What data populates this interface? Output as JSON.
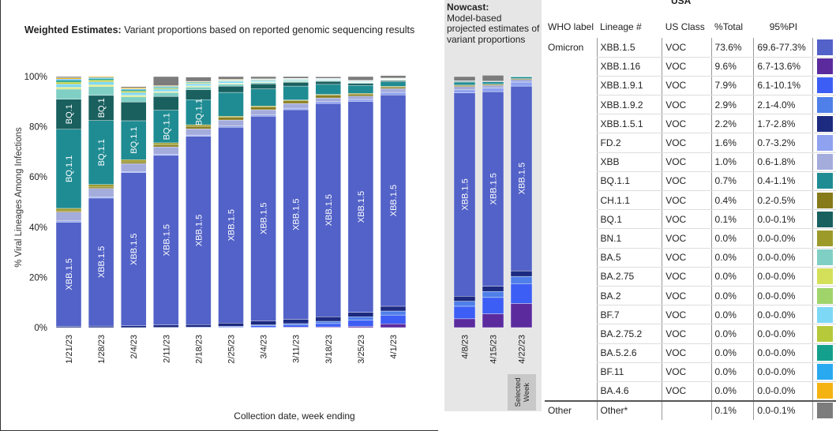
{
  "chart_title_bold": "Weighted Estimates:",
  "chart_title_rest": " Variant proportions based on reported genomic sequencing results",
  "nowcast_title_bold": "Nowcast:",
  "nowcast_title_rest": "Model-based projected estimates of variant proportions",
  "selected_week_label": "Selected Week",
  "usa_title": "USA",
  "colors": {
    "XBB.1.5": "#5262c8",
    "XBB.1.16": "#5b2b9e",
    "XBB.1.9.1": "#3d5ef5",
    "XBB.1.9.2": "#4f7fe8",
    "XBB.1.5.1": "#1c2a80",
    "FD.2": "#8ea2f0",
    "XBB": "#a4acdc",
    "BQ.1.1": "#1f8c93",
    "CH.1.1": "#877a1a",
    "BQ.1": "#19605f",
    "BN.1": "#9c9b2a",
    "BA.5": "#80cfc4",
    "BA.2.75": "#d5e05a",
    "BA.2": "#9fd46a",
    "BF.7": "#7dd8f5",
    "BA.2.75.2": "#b5c93a",
    "BA.5.2.6": "#15a08e",
    "BF.11": "#29a9f0",
    "BA.4.6": "#f5b312",
    "Other": "#7c7c7c"
  },
  "chart_data": {
    "type": "bar",
    "stacked": true,
    "ylabel": "% Viral Lineages Among Infections",
    "xlabel": "Collection date, week ending",
    "ylim": [
      0,
      100
    ],
    "yticks": [
      "0%",
      "20%",
      "40%",
      "60%",
      "80%",
      "100%"
    ],
    "ytick_values": [
      0,
      20,
      40,
      60,
      80,
      100
    ],
    "stack_order": [
      "XBB.1.16",
      "XBB.1.9.1",
      "XBB.1.9.2",
      "XBB.1.5.1",
      "XBB.1.5",
      "FD.2",
      "XBB",
      "CH.1.1",
      "BN.1",
      "BQ.1.1",
      "BQ.1",
      "BA.5",
      "BA.2.75",
      "BA.2",
      "BF.7",
      "BA.2.75.2",
      "BA.5.2.6",
      "BF.11",
      "BA.4.6",
      "Other"
    ],
    "weighted": {
      "categories": [
        "1/21/23",
        "1/28/23",
        "2/4/23",
        "2/11/23",
        "2/18/23",
        "2/25/23",
        "3/4/23",
        "3/11/23",
        "3/18/23",
        "3/25/23",
        "4/1/23"
      ],
      "series": [
        {
          "name": "XBB.1.16",
          "values": [
            0,
            0,
            0,
            0,
            0,
            0,
            0.1,
            0.2,
            0.3,
            0.5,
            1.5
          ]
        },
        {
          "name": "XBB.1.9.1",
          "values": [
            0,
            0,
            0,
            0.1,
            0.2,
            0.3,
            0.6,
            0.8,
            1.3,
            2.5,
            3.5
          ]
        },
        {
          "name": "XBB.1.9.2",
          "values": [
            0,
            0,
            0,
            0,
            0,
            0.2,
            0.4,
            0.6,
            0.9,
            1.3,
            1.6
          ]
        },
        {
          "name": "XBB.1.5.1",
          "values": [
            0.5,
            0.6,
            0.7,
            1.0,
            1.0,
            1.3,
            1.6,
            1.7,
            1.8,
            1.8,
            1.9
          ]
        },
        {
          "name": "XBB.1.5",
          "values": [
            41.5,
            51.0,
            61.0,
            67.5,
            75.0,
            78.0,
            81.5,
            83.5,
            85.0,
            84.0,
            84.2
          ]
        },
        {
          "name": "FD.2",
          "values": [
            0.5,
            0.5,
            0.5,
            0.5,
            0.5,
            0.5,
            0.5,
            0.6,
            0.7,
            0.8,
            1.0
          ]
        },
        {
          "name": "XBB",
          "values": [
            3.5,
            3.3,
            3.1,
            2.9,
            2.5,
            2.4,
            2.1,
            1.9,
            1.5,
            1.3,
            1.5
          ]
        },
        {
          "name": "CH.1.1",
          "values": [
            0.5,
            0.6,
            0.7,
            0.8,
            0.9,
            1.0,
            1.0,
            1.0,
            1.0,
            0.8,
            0.6
          ]
        },
        {
          "name": "BN.1",
          "values": [
            1.0,
            1.0,
            0.9,
            0.8,
            0.7,
            0.5,
            0.5,
            0.4,
            0.4,
            0.3,
            0.3
          ]
        },
        {
          "name": "BQ.1.1",
          "values": [
            31.5,
            25.5,
            15.5,
            13.0,
            10.0,
            9.5,
            6.8,
            5.5,
            4.0,
            3.2,
            1.8
          ]
        },
        {
          "name": "BQ.1",
          "values": [
            12.0,
            10.0,
            7.5,
            5.5,
            4.0,
            2.5,
            2.0,
            1.5,
            1.2,
            0.8,
            0.5
          ]
        },
        {
          "name": "BA.5",
          "values": [
            4.0,
            3.5,
            2.0,
            1.5,
            1.0,
            0.8,
            0.5,
            0.4,
            0.3,
            0.3,
            0.2
          ]
        },
        {
          "name": "BA.2.75",
          "values": [
            0.5,
            0.5,
            0.4,
            0.3,
            0.3,
            0.2,
            0.2,
            0.2,
            0.1,
            0.1,
            0.1
          ]
        },
        {
          "name": "BA.2",
          "values": [
            0.3,
            0.3,
            0.3,
            0.2,
            0.2,
            0.2,
            0.1,
            0.1,
            0.1,
            0.1,
            0.1
          ]
        },
        {
          "name": "BF.7",
          "values": [
            1.2,
            1.1,
            1.0,
            0.9,
            0.8,
            0.7,
            0.5,
            0.4,
            0.3,
            0.3,
            0.2
          ]
        },
        {
          "name": "BA.2.75.2",
          "values": [
            0.8,
            0.7,
            0.6,
            0.4,
            0.3,
            0.2,
            0.2,
            0.2,
            0.1,
            0.1,
            0.1
          ]
        },
        {
          "name": "BA.5.2.6",
          "values": [
            0.7,
            0.6,
            0.5,
            0.4,
            0.3,
            0.2,
            0.2,
            0.1,
            0.1,
            0.1,
            0.1
          ]
        },
        {
          "name": "BF.11",
          "values": [
            0.5,
            0.4,
            0.4,
            0.3,
            0.2,
            0.2,
            0.2,
            0.1,
            0.1,
            0.1,
            0.1
          ]
        },
        {
          "name": "BA.4.6",
          "values": [
            0.5,
            0.4,
            0.4,
            0.3,
            0.2,
            0.2,
            0.1,
            0.1,
            0.1,
            0.1,
            0.1
          ]
        },
        {
          "name": "Other",
          "values": [
            0.5,
            0.0,
            0.5,
            3.6,
            1.7,
            1.1,
            0.9,
            0.7,
            0.6,
            1.5,
            1.0
          ]
        }
      ],
      "bar_labels": [
        [
          {
            "lineage": "XBB.1.5",
            "text": "XBB.1.5"
          },
          {
            "lineage": "BQ.1.1",
            "text": "BQ.1.1"
          },
          {
            "lineage": "BQ.1",
            "text": "BQ.1"
          }
        ],
        [
          {
            "lineage": "XBB.1.5",
            "text": "XBB.1.5"
          },
          {
            "lineage": "BQ.1.1",
            "text": "BQ.1.1"
          },
          {
            "lineage": "BQ.1",
            "text": "BQ.1"
          }
        ],
        [
          {
            "lineage": "XBB.1.5",
            "text": "XBB.1.5"
          },
          {
            "lineage": "BQ.1.1",
            "text": "BQ.1.1"
          }
        ],
        [
          {
            "lineage": "XBB.1.5",
            "text": "XBB.1.5"
          },
          {
            "lineage": "BQ.1.1",
            "text": "BQ.1.1"
          }
        ],
        [
          {
            "lineage": "XBB.1.5",
            "text": "XBB.1.5"
          },
          {
            "lineage": "BQ.1.1",
            "text": "BQ.1.1"
          }
        ],
        [
          {
            "lineage": "XBB.1.5",
            "text": "XBB.1.5"
          }
        ],
        [
          {
            "lineage": "XBB.1.5",
            "text": "XBB.1.5"
          }
        ],
        [
          {
            "lineage": "XBB.1.5",
            "text": "XBB.1.5"
          }
        ],
        [
          {
            "lineage": "XBB.1.5",
            "text": "XBB.1.5"
          }
        ],
        [
          {
            "lineage": "XBB.1.5",
            "text": "XBB.1.5"
          }
        ],
        [
          {
            "lineage": "XBB.1.5",
            "text": "XBB.1.5"
          }
        ]
      ]
    },
    "nowcast": {
      "categories": [
        "4/8/23",
        "4/15/23",
        "4/22/23"
      ],
      "selected_index": 2,
      "series": [
        {
          "name": "XBB.1.16",
          "values": [
            3.5,
            5.5,
            9.6
          ]
        },
        {
          "name": "XBB.1.9.1",
          "values": [
            5.0,
            6.5,
            7.9
          ]
        },
        {
          "name": "XBB.1.9.2",
          "values": [
            2.0,
            2.4,
            2.9
          ]
        },
        {
          "name": "XBB.1.5.1",
          "values": [
            2.0,
            2.1,
            2.2
          ]
        },
        {
          "name": "XBB.1.5",
          "values": [
            81.0,
            77.5,
            73.6
          ]
        },
        {
          "name": "FD.2",
          "values": [
            1.2,
            1.4,
            1.6
          ]
        },
        {
          "name": "XBB",
          "values": [
            1.3,
            1.1,
            1.0
          ]
        },
        {
          "name": "CH.1.1",
          "values": [
            0.5,
            0.4,
            0.4
          ]
        },
        {
          "name": "BN.1",
          "values": [
            0.1,
            0.1,
            0.0
          ]
        },
        {
          "name": "BQ.1.1",
          "values": [
            1.2,
            0.9,
            0.7
          ]
        },
        {
          "name": "BQ.1",
          "values": [
            0.3,
            0.2,
            0.1
          ]
        },
        {
          "name": "BA.5",
          "values": [
            0.1,
            0.1,
            0.0
          ]
        },
        {
          "name": "BA.2.75",
          "values": [
            0.0,
            0.0,
            0.0
          ]
        },
        {
          "name": "BA.2",
          "values": [
            0.0,
            0.0,
            0.0
          ]
        },
        {
          "name": "BF.7",
          "values": [
            0.1,
            0.0,
            0.0
          ]
        },
        {
          "name": "BA.2.75.2",
          "values": [
            0.0,
            0.0,
            0.0
          ]
        },
        {
          "name": "BA.5.2.6",
          "values": [
            0.0,
            0.0,
            0.0
          ]
        },
        {
          "name": "BF.11",
          "values": [
            0.0,
            0.0,
            0.0
          ]
        },
        {
          "name": "BA.4.6",
          "values": [
            0.0,
            0.0,
            0.0
          ]
        },
        {
          "name": "Other",
          "values": [
            1.7,
            2.3,
            0.1
          ]
        }
      ],
      "bar_labels": [
        [
          {
            "lineage": "XBB.1.5",
            "text": "XBB.1.5"
          }
        ],
        [
          {
            "lineage": "XBB.1.5",
            "text": "XBB.1.5"
          }
        ],
        [
          {
            "lineage": "XBB.1.5",
            "text": "XBB.1.5"
          }
        ]
      ]
    }
  },
  "table": {
    "headers": {
      "who": "WHO label",
      "lineage": "Lineage #",
      "us_class": "US Class",
      "pct": "%Total",
      "pi": "95%PI"
    },
    "rows": [
      {
        "who": "Omicron",
        "lineage": "XBB.1.5",
        "us_class": "VOC",
        "pct": "73.6%",
        "pi": "69.6-77.3%"
      },
      {
        "who": "",
        "lineage": "XBB.1.16",
        "us_class": "VOC",
        "pct": "9.6%",
        "pi": "6.7-13.6%"
      },
      {
        "who": "",
        "lineage": "XBB.1.9.1",
        "us_class": "VOC",
        "pct": "7.9%",
        "pi": "6.1-10.1%"
      },
      {
        "who": "",
        "lineage": "XBB.1.9.2",
        "us_class": "VOC",
        "pct": "2.9%",
        "pi": "2.1-4.0%"
      },
      {
        "who": "",
        "lineage": "XBB.1.5.1",
        "us_class": "VOC",
        "pct": "2.2%",
        "pi": "1.7-2.8%"
      },
      {
        "who": "",
        "lineage": "FD.2",
        "us_class": "VOC",
        "pct": "1.6%",
        "pi": "0.7-3.2%"
      },
      {
        "who": "",
        "lineage": "XBB",
        "us_class": "VOC",
        "pct": "1.0%",
        "pi": "0.6-1.8%"
      },
      {
        "who": "",
        "lineage": "BQ.1.1",
        "us_class": "VOC",
        "pct": "0.7%",
        "pi": "0.4-1.1%"
      },
      {
        "who": "",
        "lineage": "CH.1.1",
        "us_class": "VOC",
        "pct": "0.4%",
        "pi": "0.2-0.5%"
      },
      {
        "who": "",
        "lineage": "BQ.1",
        "us_class": "VOC",
        "pct": "0.1%",
        "pi": "0.0-0.1%"
      },
      {
        "who": "",
        "lineage": "BN.1",
        "us_class": "VOC",
        "pct": "0.0%",
        "pi": "0.0-0.0%"
      },
      {
        "who": "",
        "lineage": "BA.5",
        "us_class": "VOC",
        "pct": "0.0%",
        "pi": "0.0-0.0%"
      },
      {
        "who": "",
        "lineage": "BA.2.75",
        "us_class": "VOC",
        "pct": "0.0%",
        "pi": "0.0-0.0%"
      },
      {
        "who": "",
        "lineage": "BA.2",
        "us_class": "VOC",
        "pct": "0.0%",
        "pi": "0.0-0.0%"
      },
      {
        "who": "",
        "lineage": "BF.7",
        "us_class": "VOC",
        "pct": "0.0%",
        "pi": "0.0-0.0%"
      },
      {
        "who": "",
        "lineage": "BA.2.75.2",
        "us_class": "VOC",
        "pct": "0.0%",
        "pi": "0.0-0.0%"
      },
      {
        "who": "",
        "lineage": "BA.5.2.6",
        "us_class": "VOC",
        "pct": "0.0%",
        "pi": "0.0-0.0%"
      },
      {
        "who": "",
        "lineage": "BF.11",
        "us_class": "VOC",
        "pct": "0.0%",
        "pi": "0.0-0.0%"
      },
      {
        "who": "",
        "lineage": "BA.4.6",
        "us_class": "VOC",
        "pct": "0.0%",
        "pi": "0.0-0.0%"
      },
      {
        "who": "Other",
        "lineage": "Other*",
        "us_class": "",
        "pct": "0.1%",
        "pi": "0.0-0.1%",
        "swatch_key": "Other"
      }
    ]
  }
}
